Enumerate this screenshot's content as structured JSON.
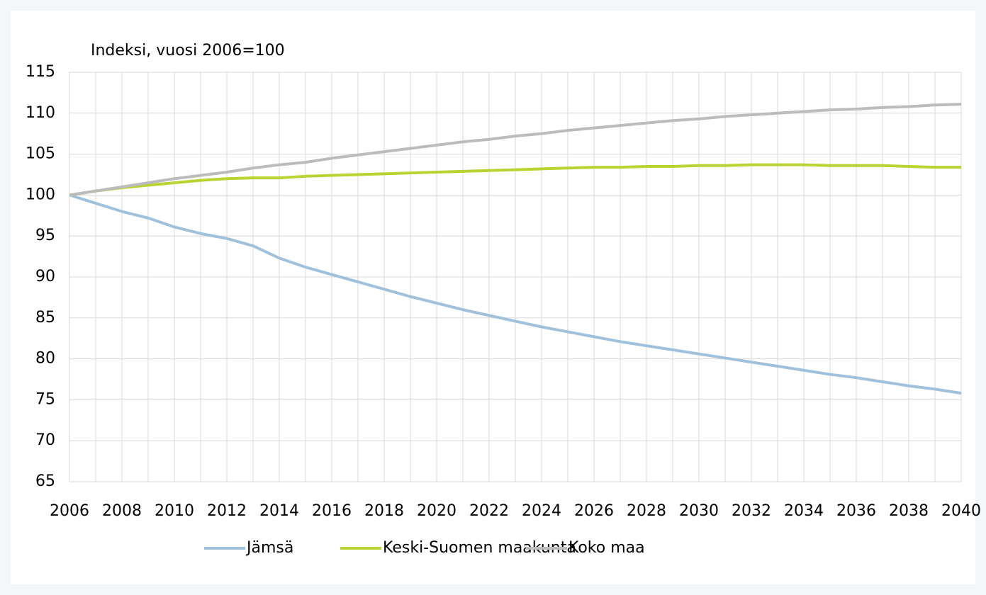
{
  "chart_data": {
    "type": "line",
    "y_label": "Indeksi, vuosi 2006=100",
    "x": [
      2006,
      2007,
      2008,
      2009,
      2010,
      2011,
      2012,
      2013,
      2014,
      2015,
      2016,
      2017,
      2018,
      2019,
      2020,
      2021,
      2022,
      2023,
      2024,
      2025,
      2026,
      2027,
      2028,
      2029,
      2030,
      2031,
      2032,
      2033,
      2034,
      2035,
      2036,
      2037,
      2038,
      2039,
      2040
    ],
    "series": [
      {
        "name": "Jämsä",
        "color": "#9fc1dc",
        "values": [
          100,
          99,
          98,
          97.2,
          96.1,
          95.3,
          94.7,
          93.8,
          92.3,
          91.2,
          90.3,
          89.4,
          88.5,
          87.6,
          86.8,
          86.0,
          85.3,
          84.6,
          83.9,
          83.3,
          82.7,
          82.1,
          81.6,
          81.1,
          80.6,
          80.1,
          79.6,
          79.1,
          78.6,
          78.1,
          77.7,
          77.2,
          76.7,
          76.3,
          75.8
        ]
      },
      {
        "name": "Keski-Suomen maakunta",
        "color": "#b8d433",
        "values": [
          100,
          100.5,
          100.9,
          101.2,
          101.5,
          101.8,
          102.0,
          102.1,
          102.1,
          102.3,
          102.4,
          102.5,
          102.6,
          102.7,
          102.8,
          102.9,
          103.0,
          103.1,
          103.2,
          103.3,
          103.4,
          103.4,
          103.5,
          103.5,
          103.6,
          103.6,
          103.7,
          103.7,
          103.7,
          103.6,
          103.6,
          103.6,
          103.5,
          103.4,
          103.4
        ]
      },
      {
        "name": "Koko maa",
        "color": "#bcbcbc",
        "values": [
          100,
          100.5,
          101.0,
          101.5,
          102.0,
          102.4,
          102.8,
          103.3,
          103.7,
          104.0,
          104.5,
          104.9,
          105.3,
          105.7,
          106.1,
          106.5,
          106.8,
          107.2,
          107.5,
          107.9,
          108.2,
          108.5,
          108.8,
          109.1,
          109.3,
          109.6,
          109.8,
          110.0,
          110.2,
          110.4,
          110.5,
          110.7,
          110.8,
          111.0,
          111.1
        ]
      }
    ],
    "xlim": [
      2006,
      2040
    ],
    "xticks": [
      2006,
      2008,
      2010,
      2012,
      2014,
      2016,
      2018,
      2020,
      2022,
      2024,
      2026,
      2028,
      2030,
      2032,
      2034,
      2036,
      2038,
      2040
    ],
    "ylim": [
      65,
      115
    ],
    "yticks": [
      65,
      70,
      75,
      80,
      85,
      90,
      95,
      100,
      105,
      110,
      115
    ],
    "grid": true,
    "legend": "bottom"
  }
}
